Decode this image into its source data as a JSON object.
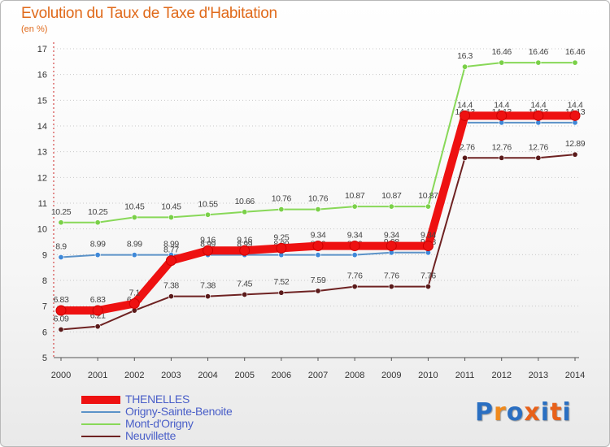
{
  "header": {
    "title": "Evolution du Taux de Taxe d'Habitation",
    "subtitle": "(en %)"
  },
  "logo": {
    "text": "Proxiti",
    "letters": [
      "P",
      "r",
      "o",
      "x",
      "i",
      "t",
      "i"
    ],
    "colors": [
      "#2a6fc2",
      "#f08a1c",
      "#2a6fc2",
      "#e8611a",
      "#2a6fc2",
      "#e8611a",
      "#2a6fc2"
    ]
  },
  "chart_data": {
    "type": "line",
    "title": "Evolution du Taux de Taxe d'Habitation",
    "ylabel": "(en %)",
    "xlabel": "",
    "ylim": [
      5,
      17
    ],
    "yticks": [
      "5",
      "6",
      "7",
      "8",
      "9",
      "10",
      "11",
      "12",
      "13",
      "14",
      "15",
      "16",
      "17"
    ],
    "grid": "horizontal dotted",
    "legend": "bottom-left",
    "categories": [
      "2000",
      "2001",
      "2002",
      "2003",
      "2004",
      "2005",
      "2006",
      "2007",
      "2008",
      "2009",
      "2010",
      "2011",
      "2012",
      "2013",
      "2014"
    ],
    "series": [
      {
        "name": "Mont-d'Origny",
        "color": "#88d858",
        "marker": "#7ad048",
        "values": [
          10.25,
          10.25,
          10.45,
          10.45,
          10.55,
          10.66,
          10.76,
          10.76,
          10.87,
          10.87,
          10.87,
          16.3,
          16.46,
          16.46,
          16.46
        ],
        "labels": [
          "10.25",
          "10.25",
          "10.45",
          "10.45",
          "10.55",
          "10.66",
          "10.76",
          "10.76",
          "10.87",
          "10.87",
          "10.87",
          "16.3",
          "16.46",
          "16.46",
          "16.46"
        ]
      },
      {
        "name": "Origny-Sainte-Benoite",
        "color": "#5b92c8",
        "marker": "#3e88d8",
        "values": [
          8.9,
          8.99,
          8.99,
          8.99,
          8.99,
          8.99,
          8.99,
          8.99,
          8.99,
          9.08,
          9.08,
          14.13,
          14.13,
          14.13,
          14.13
        ],
        "labels": [
          "8.9",
          "8.99",
          "8.99",
          "8.99",
          "8.99",
          "8.99",
          "8.99",
          "8.99",
          "8.99",
          "9.08",
          "9.08",
          "14.13",
          "14.13",
          "14.13",
          "14.13"
        ]
      },
      {
        "name": "Neuvillette",
        "color": "#6e2222",
        "marker": "#5a1a1a",
        "values": [
          6.09,
          6.21,
          6.83,
          7.38,
          7.38,
          7.45,
          7.52,
          7.59,
          7.76,
          7.76,
          7.76,
          12.76,
          12.76,
          12.76,
          12.89
        ],
        "labels": [
          "6.09",
          "6.21",
          "6.83",
          "7.38",
          "7.38",
          "7.45",
          "7.52",
          "7.59",
          "7.76",
          "7.76",
          "7.76",
          "12.76",
          "12.76",
          "12.76",
          "12.89"
        ]
      },
      {
        "name": "THENELLES",
        "color": "#ee1111",
        "marker": "#ee1111",
        "values": [
          6.83,
          6.83,
          7.1,
          8.77,
          9.16,
          9.16,
          9.25,
          9.34,
          9.34,
          9.34,
          9.34,
          14.4,
          14.4,
          14.4,
          14.4
        ],
        "labels": [
          "6.83",
          "6.83",
          "7.1",
          "8.77",
          "9.16",
          "9.16",
          "9.25",
          "9.34",
          "9.34",
          "9.34",
          "9.34",
          "14.4",
          "14.4",
          "14.4",
          "14.4"
        ]
      }
    ],
    "legend_order": [
      "THENELLES",
      "Origny-Sainte-Benoite",
      "Mont-d'Origny",
      "Neuvillette"
    ]
  }
}
